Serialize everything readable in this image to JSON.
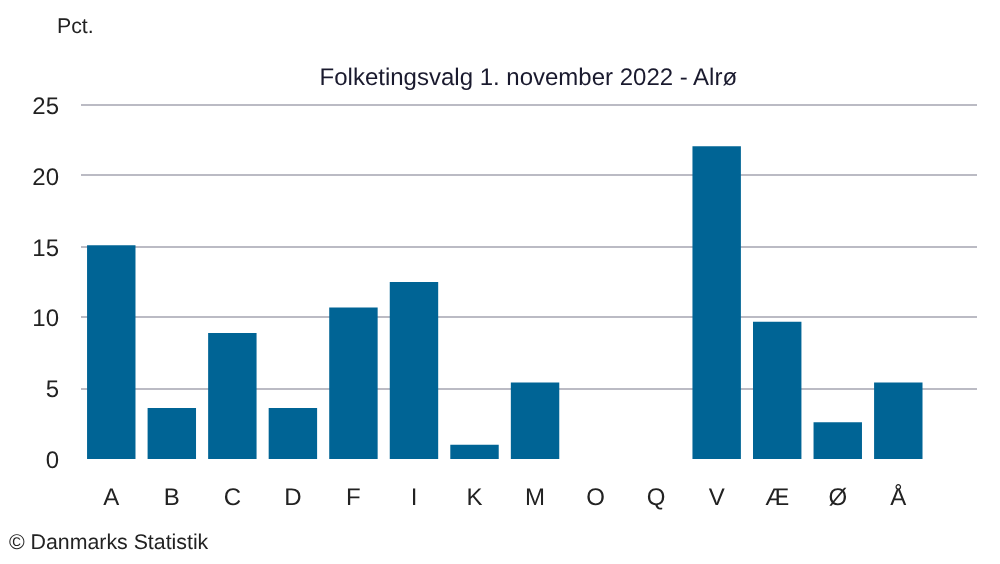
{
  "chart_data": {
    "type": "bar",
    "title": "Folketingsvalg 1. november 2022 - Alrø",
    "ylabel": "Pct.",
    "categories": [
      "A",
      "B",
      "C",
      "D",
      "F",
      "I",
      "K",
      "M",
      "O",
      "Q",
      "V",
      "Æ",
      "Ø",
      "Å"
    ],
    "values": [
      15.1,
      3.6,
      8.9,
      3.6,
      10.7,
      12.5,
      1.0,
      5.4,
      0,
      0,
      22.1,
      9.7,
      2.6,
      5.4
    ],
    "color": "#006495",
    "ylim": [
      0,
      25.3
    ],
    "yticks": [
      0,
      5,
      10,
      15,
      20,
      25
    ],
    "grid": "y",
    "annotations": [
      "© Danmarks Statistik"
    ]
  }
}
